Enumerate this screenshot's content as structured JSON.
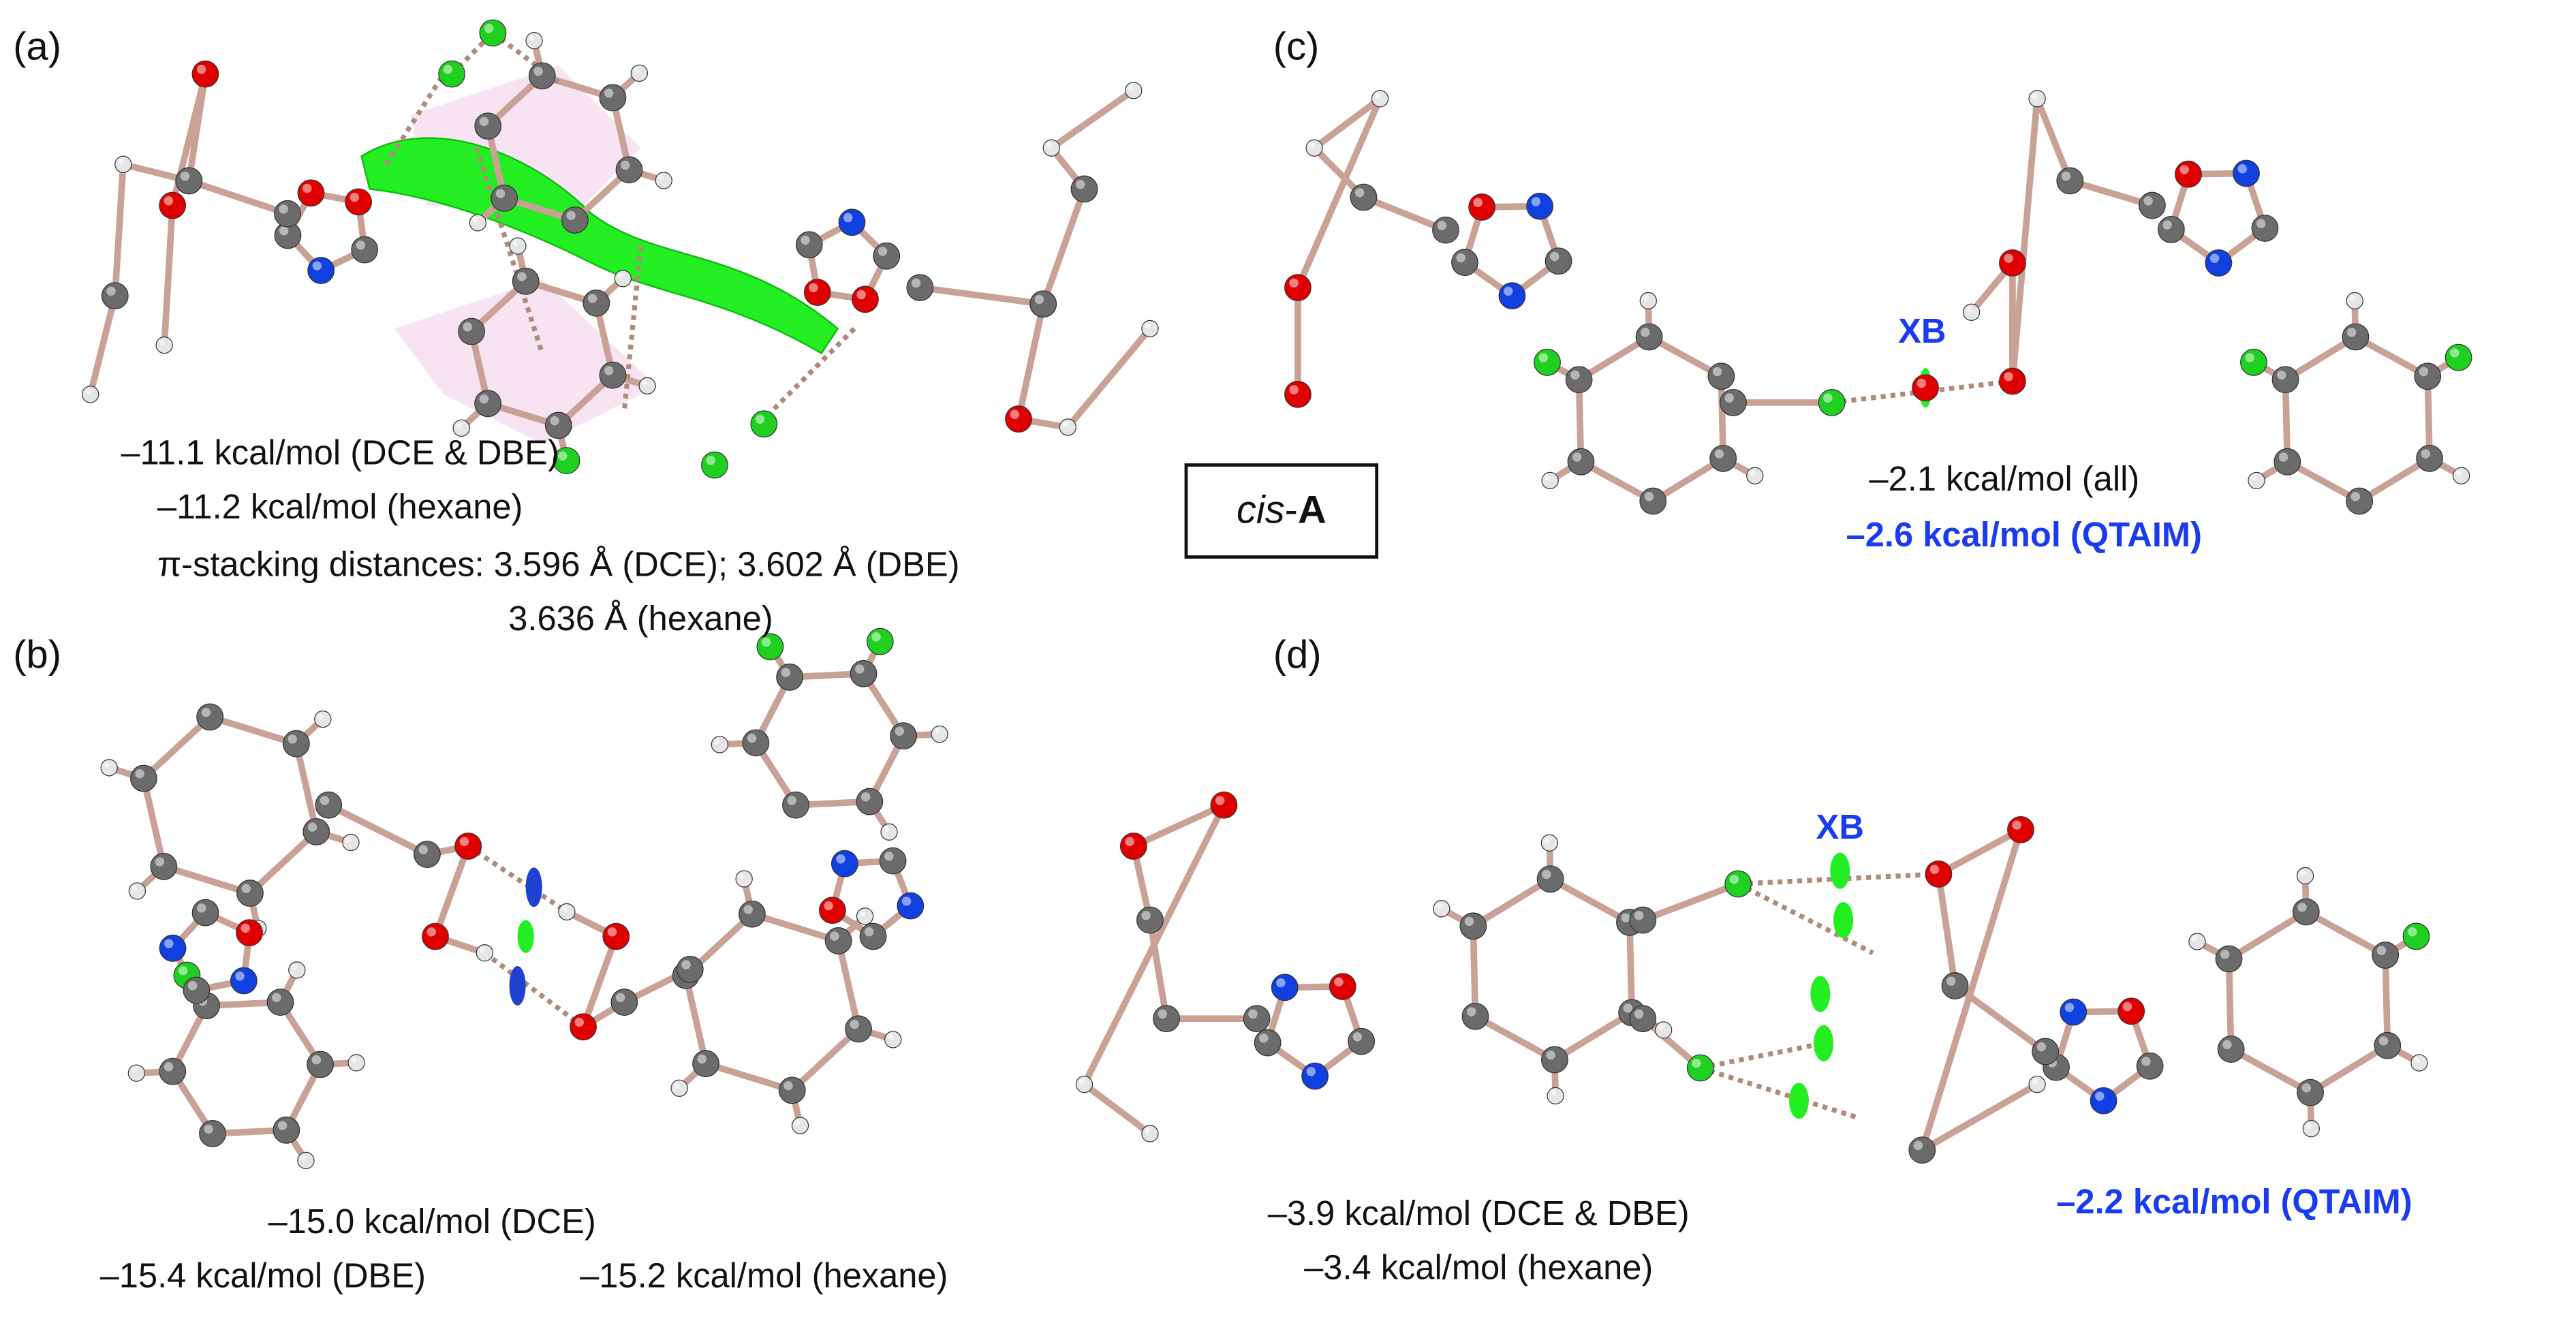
{
  "panels": [
    {
      "label": "(a)",
      "texts": [
        "–11.1 kcal/mol (DCE & DBE)",
        "–11.2 kcal/mol (hexane)",
        "π-stacking distances: 3.596 Å (DCE); 3.602 Å (DBE)",
        "3.636 Å (hexane)"
      ]
    },
    {
      "label": "(b)",
      "texts": [
        "–15.0 kcal/mol (DCE)",
        "–15.4 kcal/mol (DBE)",
        "–15.2 kcal/mol (hexane)"
      ]
    },
    {
      "label": "(c)",
      "xb": "XB",
      "texts": [
        "–2.1 kcal/mol (all)"
      ],
      "qtaim": "–2.6 kcal/mol (QTAIM)"
    },
    {
      "label": "(d)",
      "xb": "XB",
      "texts": [
        "–3.9 kcal/mol (DCE & DBE)",
        "–3.4 kcal/mol (hexane)"
      ],
      "qtaim": "–2.2 kcal/mol (QTAIM)"
    }
  ],
  "compound": {
    "prefix": "cis",
    "joiner": "-",
    "name": "A"
  }
}
